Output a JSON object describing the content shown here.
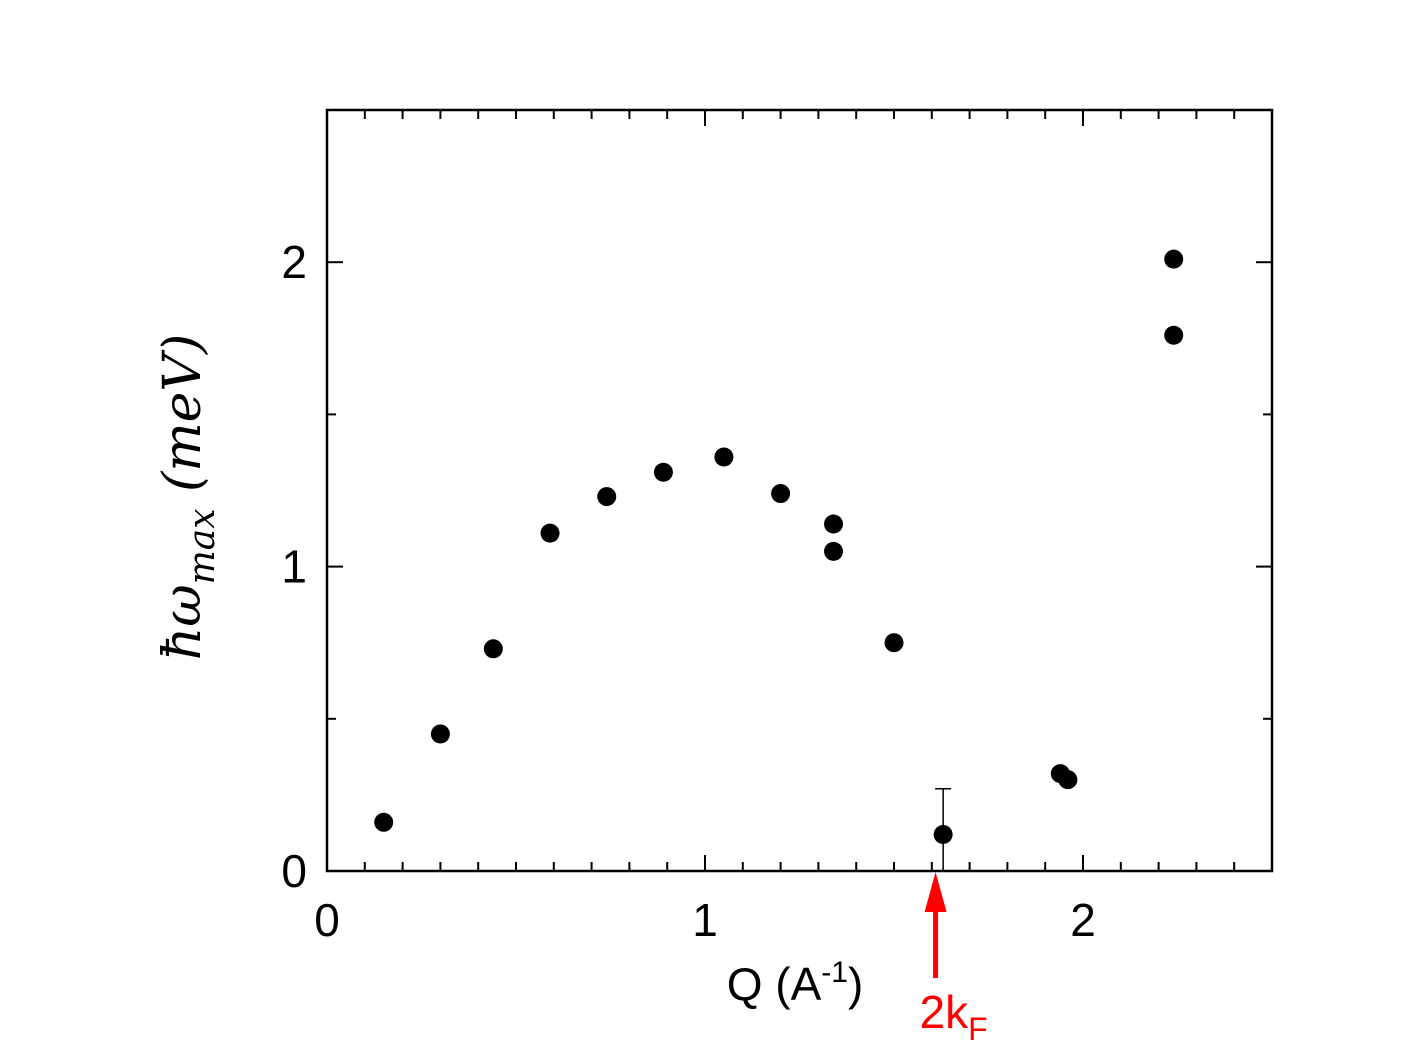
{
  "chart_data": {
    "type": "scatter",
    "title": "",
    "xlabel": {
      "base": "Q (A",
      "sup": "-1",
      "tail": ")"
    },
    "ylabel": {
      "base": "ħω",
      "sub": "max",
      "tail": " (meV)"
    },
    "xlim": [
      0,
      2.5
    ],
    "ylim": [
      0,
      2.5
    ],
    "xticks": [
      0,
      1,
      2
    ],
    "xtick_labels": [
      "0",
      "1",
      "2"
    ],
    "yticks": [
      0,
      1,
      2
    ],
    "ytick_labels": [
      "0",
      "1",
      "2"
    ],
    "minor_step": 0.1,
    "grid": false,
    "legend": "none",
    "series": [
      {
        "color": "#000000",
        "points": [
          {
            "x": 0.15,
            "y": 0.16
          },
          {
            "x": 0.3,
            "y": 0.45
          },
          {
            "x": 0.44,
            "y": 0.73
          },
          {
            "x": 0.59,
            "y": 1.11
          },
          {
            "x": 0.74,
            "y": 1.23
          },
          {
            "x": 0.89,
            "y": 1.31
          },
          {
            "x": 1.05,
            "y": 1.36
          },
          {
            "x": 1.2,
            "y": 1.24
          },
          {
            "x": 1.34,
            "y": 1.14
          },
          {
            "x": 1.34,
            "y": 1.05
          },
          {
            "x": 1.5,
            "y": 0.75
          },
          {
            "x": 1.63,
            "y": 0.12,
            "err_plus": 0.15,
            "err_minus": 0.12
          },
          {
            "x": 1.94,
            "y": 0.32
          },
          {
            "x": 1.96,
            "y": 0.3
          },
          {
            "x": 2.24,
            "y": 2.01
          },
          {
            "x": 2.24,
            "y": 1.76
          }
        ]
      }
    ],
    "annotations": [
      {
        "text": "2k",
        "sub": "F",
        "x": 1.61,
        "color": "#ff0000",
        "arrow": "up"
      }
    ]
  }
}
